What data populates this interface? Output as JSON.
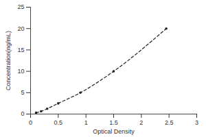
{
  "chart_data": {
    "type": "line",
    "x_label": "Optical Density",
    "y_label": "Concentration(ng/mL)",
    "x": [
      0.1,
      0.19,
      0.3,
      0.5,
      0.9,
      1.5,
      2.45
    ],
    "values": [
      0.31,
      0.63,
      1.25,
      2.5,
      5,
      10,
      20
    ],
    "color": "#222222",
    "marker": "circle",
    "line_style": "dashed",
    "xlim": [
      0,
      3
    ],
    "xticks": [
      0,
      0.5,
      1,
      1.5,
      2,
      2.5,
      3
    ],
    "ylim": [
      0,
      25
    ],
    "yticks": [
      0,
      5,
      10,
      15,
      20,
      25
    ],
    "grid": false
  }
}
